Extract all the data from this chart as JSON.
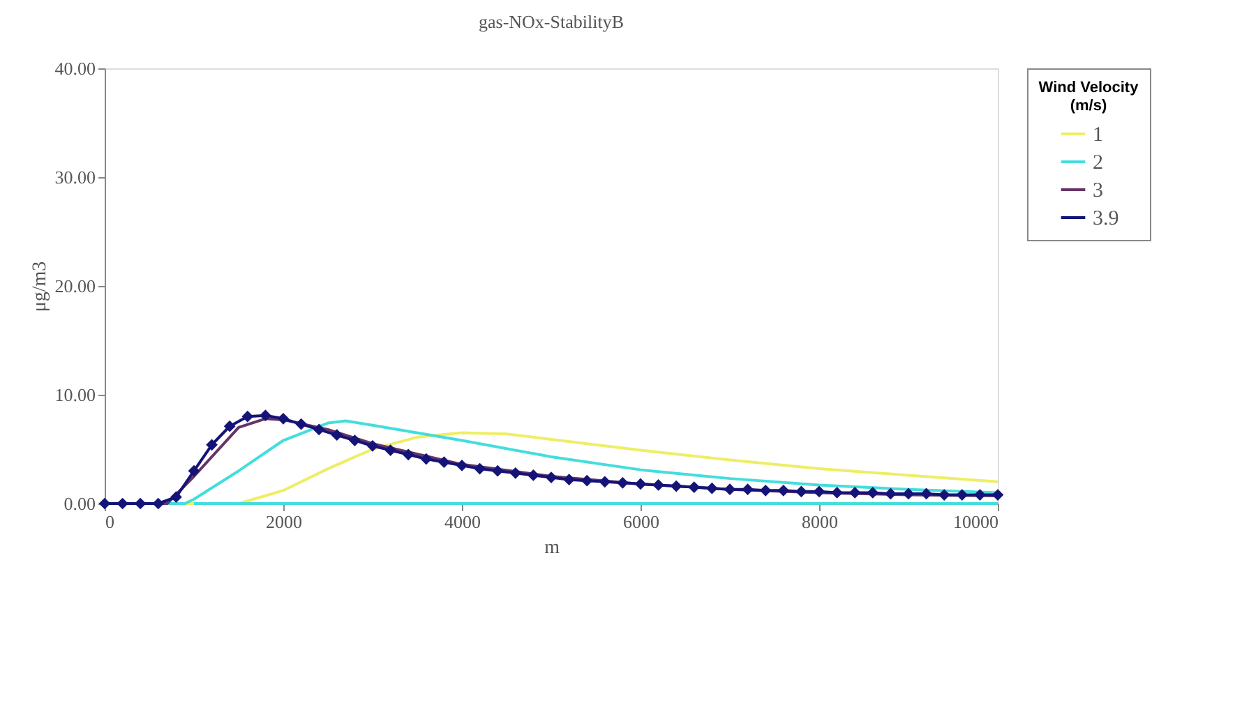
{
  "chart_data": {
    "type": "line",
    "title": "gas-NOx-StabilityB",
    "xlabel": "m",
    "ylabel": "μg/m3",
    "legend_title": "Wind Velocity (m/s)",
    "legend": "right",
    "xlim": [
      0,
      10000
    ],
    "xticks": [
      0,
      2000,
      4000,
      6000,
      8000,
      10000
    ],
    "ylim": [
      0,
      40
    ],
    "yticks": [
      {
        "value": 0,
        "label": "0.00"
      },
      {
        "value": 10,
        "label": "10.00"
      },
      {
        "value": 20,
        "label": "20.00"
      },
      {
        "value": 30,
        "label": "30.00"
      },
      {
        "value": 40,
        "label": "40.00"
      }
    ],
    "grid": false,
    "series": [
      {
        "name": "1",
        "color": "#eeee66",
        "marker": "none",
        "x": [
          0,
          1500,
          2000,
          2500,
          3000,
          3500,
          4000,
          4500,
          5000,
          6000,
          7000,
          8000,
          9000,
          10000
        ],
        "values": [
          0,
          0,
          1.2,
          3.2,
          5.0,
          6.1,
          6.5,
          6.4,
          5.9,
          4.9,
          4.0,
          3.2,
          2.6,
          2.0
        ]
      },
      {
        "name": "2",
        "color": "#44dddd",
        "marker": "none",
        "x": [
          0,
          900,
          1000,
          1500,
          2000,
          2500,
          2700,
          3000,
          4000,
          5000,
          6000,
          7000,
          8000,
          9000,
          10000
        ],
        "values": [
          0,
          0,
          0.4,
          3.0,
          5.8,
          7.4,
          7.6,
          7.2,
          5.8,
          4.3,
          3.1,
          2.3,
          1.7,
          1.3,
          1.0
        ]
      },
      {
        "name": "3",
        "color": "#663366",
        "marker": "none",
        "x": [
          0,
          700,
          1000,
          1500,
          1800,
          2000,
          2500,
          3000,
          4000,
          5000,
          6000,
          7000,
          8000,
          9000,
          10000
        ],
        "values": [
          0,
          0,
          2.5,
          7.0,
          7.8,
          7.7,
          6.8,
          5.5,
          3.6,
          2.5,
          1.8,
          1.3,
          1.0,
          0.8,
          0.7
        ]
      },
      {
        "name": "3.9",
        "color": "#141478",
        "marker": "diamond",
        "x": [
          0,
          200,
          400,
          600,
          800,
          1000,
          1200,
          1400,
          1600,
          1800,
          2000,
          2200,
          2400,
          2600,
          2800,
          3000,
          3200,
          3400,
          3600,
          3800,
          4000,
          4200,
          4400,
          4600,
          4800,
          5000,
          5200,
          5400,
          5600,
          5800,
          6000,
          6200,
          6400,
          6600,
          6800,
          7000,
          7200,
          7400,
          7600,
          7800,
          8000,
          8200,
          8400,
          8600,
          8800,
          9000,
          9200,
          9400,
          9600,
          9800,
          10000
        ],
        "values": [
          0,
          0,
          0,
          0,
          0.6,
          3.0,
          5.4,
          7.1,
          8.0,
          8.1,
          7.8,
          7.3,
          6.8,
          6.3,
          5.8,
          5.3,
          4.9,
          4.5,
          4.1,
          3.8,
          3.5,
          3.2,
          3.0,
          2.8,
          2.6,
          2.4,
          2.2,
          2.1,
          2.0,
          1.9,
          1.8,
          1.7,
          1.6,
          1.5,
          1.4,
          1.3,
          1.3,
          1.2,
          1.2,
          1.1,
          1.1,
          1.0,
          1.0,
          1.0,
          0.9,
          0.9,
          0.9,
          0.8,
          0.8,
          0.8,
          0.8
        ]
      },
      {
        "color": "#44dddd",
        "marker": "none",
        "x": [
          1000,
          10000
        ],
        "values": [
          0,
          0
        ]
      }
    ]
  }
}
